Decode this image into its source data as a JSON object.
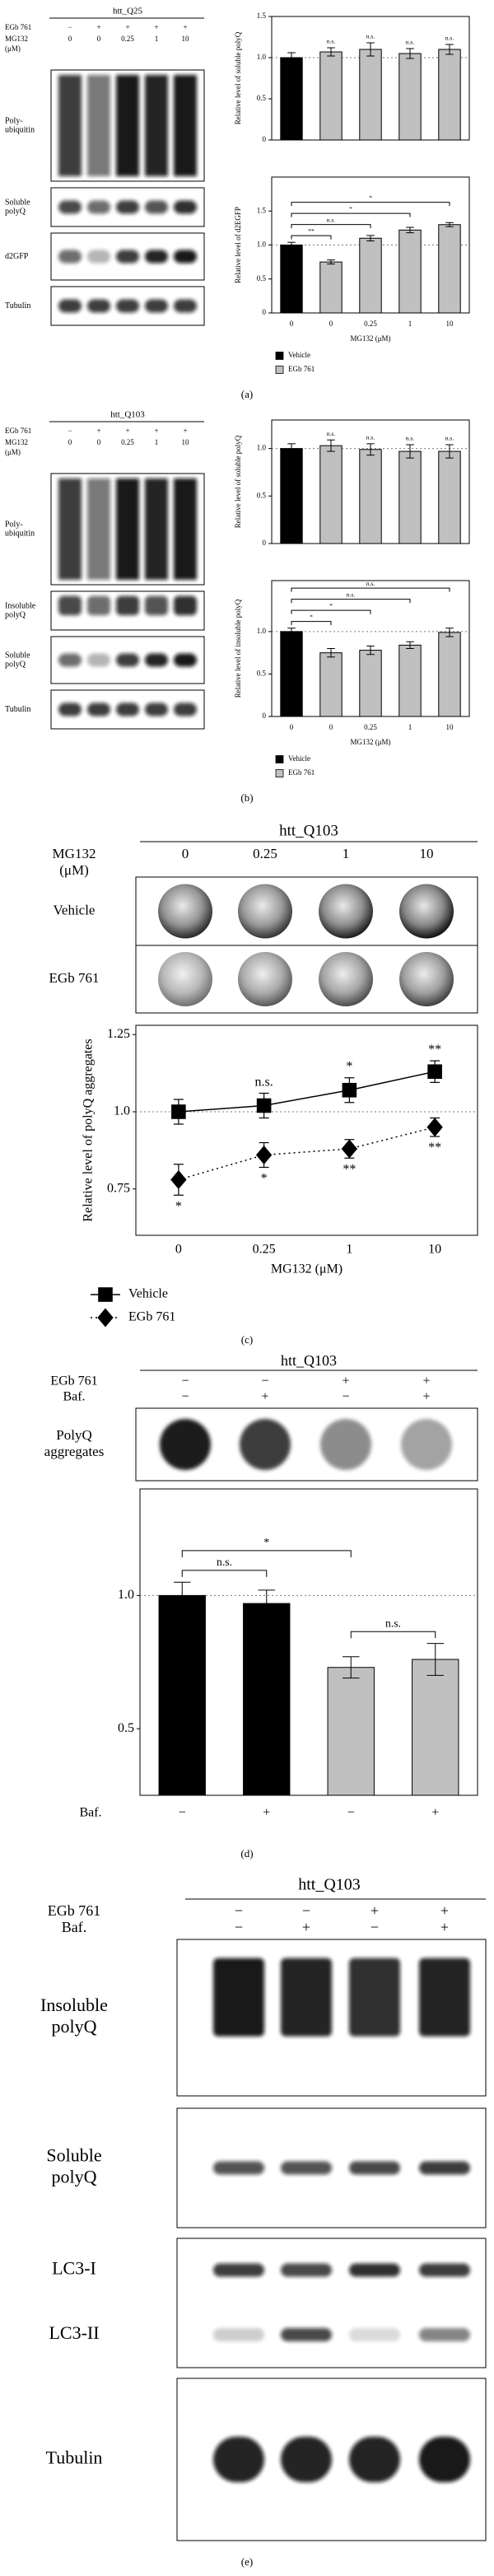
{
  "panel_labels": [
    "(a)",
    "(b)",
    "(c)",
    "(d)",
    "(e)"
  ],
  "blots": {
    "a": {
      "title": "htt_Q25",
      "conditions": [
        {
          "label": [
            "EGb 761"
          ],
          "lanes": [
            "−",
            "+",
            "+",
            "+",
            "+"
          ]
        },
        {
          "label": [
            "MG132",
            "(μM)"
          ],
          "lanes": [
            "0",
            "0",
            "0.25",
            "1",
            "10"
          ]
        }
      ],
      "rows": [
        {
          "label": [
            "Poly-",
            "ubiquitin"
          ]
        },
        {
          "label": [
            "Soluble",
            "polyQ"
          ]
        },
        {
          "label": [
            "d2GFP"
          ]
        },
        {
          "label": [
            "Tubulin"
          ]
        }
      ]
    },
    "b": {
      "title": "htt_Q103",
      "conditions": [
        {
          "label": [
            "EGb 761"
          ],
          "lanes": [
            "−",
            "+",
            "+",
            "+",
            "+"
          ]
        },
        {
          "label": [
            "MG132",
            "(μM)"
          ],
          "lanes": [
            "0",
            "0",
            "0.25",
            "1",
            "10"
          ]
        }
      ],
      "rows": [
        {
          "label": [
            "Poly-",
            "ubiquitin"
          ]
        },
        {
          "label": [
            "Insoluble",
            "polyQ"
          ]
        },
        {
          "label": [
            "Soluble",
            "polyQ"
          ]
        },
        {
          "label": [
            "Tubulin"
          ]
        }
      ]
    },
    "c": {
      "title": "htt_Q103",
      "conditions": [
        {
          "label": [
            "MG132",
            "(μM)"
          ],
          "lanes": [
            "0",
            "0.25",
            "1",
            "10"
          ]
        }
      ],
      "rows": [
        {
          "label": [
            "Vehicle"
          ]
        },
        {
          "label": [
            "EGb 761"
          ]
        }
      ]
    },
    "d": {
      "title": "htt_Q103",
      "conditions": [
        {
          "label": [
            "EGb 761"
          ],
          "lanes": [
            "−",
            "−",
            "+",
            "+"
          ]
        },
        {
          "label": [
            "Baf."
          ],
          "lanes": [
            "−",
            "+",
            "−",
            "+"
          ]
        }
      ],
      "rows": [
        {
          "label": [
            "PolyQ",
            "aggregates"
          ]
        }
      ]
    },
    "e": {
      "title": "htt_Q103",
      "conditions": [
        {
          "label": [
            "EGb 761"
          ],
          "lanes": [
            "−",
            "−",
            "+",
            "+"
          ]
        },
        {
          "label": [
            "Baf."
          ],
          "lanes": [
            "−",
            "+",
            "−",
            "+"
          ]
        }
      ],
      "rows": [
        {
          "label": [
            "Insoluble",
            "polyQ"
          ]
        },
        {
          "label": [
            "Soluble",
            "polyQ"
          ]
        },
        {
          "label": [
            "LC3-I"
          ]
        },
        {
          "label": [
            "LC3-II"
          ]
        },
        {
          "label": [
            "Tubulin"
          ]
        }
      ]
    }
  },
  "chart_data": [
    {
      "type": "bar",
      "y_label": "Relative level of soluble polyQ",
      "series": [
        {
          "name": "Vehicle",
          "color": "#000000",
          "values": [
            1.0,
            null,
            null,
            null,
            null
          ],
          "errors": [
            0.06,
            null,
            null,
            null,
            null
          ]
        },
        {
          "name": "EGb 761",
          "color": "#c0c0c0",
          "values": [
            null,
            1.07,
            1.1,
            1.05,
            1.1
          ],
          "errors": [
            null,
            0.05,
            0.08,
            0.06,
            0.06
          ]
        }
      ],
      "annotations": [
        null,
        "n.s.",
        "n.s.",
        "n.s.",
        "n.s."
      ],
      "ylim": [
        0,
        1.5
      ],
      "yticks": [
        0,
        0.5,
        {
          "value": 1,
          "label": "1.0"
        },
        1.5
      ],
      "reference_line": 1
    },
    {
      "type": "bar",
      "y_label": "Relative level of d2EGFP",
      "x_label": "MG132 (μM)",
      "categories": [
        "0",
        "0",
        "0.25",
        "1",
        "10"
      ],
      "series": [
        {
          "name": "Vehicle",
          "color": "#000000",
          "values": [
            1.0,
            null,
            null,
            null,
            null
          ],
          "errors": [
            0.04,
            null,
            null,
            null,
            null
          ]
        },
        {
          "name": "EGb 761",
          "color": "#c0c0c0",
          "values": [
            null,
            0.75,
            1.1,
            1.22,
            1.3
          ],
          "errors": [
            null,
            0.03,
            0.04,
            0.04,
            0.03
          ]
        }
      ],
      "comparisons": [
        {
          "from": 0,
          "to": 1,
          "label": "**"
        },
        {
          "from": 0,
          "to": 2,
          "label": "n.s."
        },
        {
          "from": 0,
          "to": 3,
          "label": "*"
        },
        {
          "from": 0,
          "to": 4,
          "label": "*"
        }
      ],
      "ylim": [
        0,
        2.0
      ],
      "yticks": [
        0,
        0.5,
        {
          "value": 1,
          "label": "1.0"
        },
        1.5
      ],
      "reference_line": 1,
      "legend": "below"
    },
    {
      "type": "bar",
      "y_label": "Relative level of soluble polyQ",
      "series": [
        {
          "name": "Vehicle",
          "color": "#000000",
          "values": [
            1.0,
            null,
            null,
            null,
            null
          ],
          "errors": [
            0.05,
            null,
            null,
            null,
            null
          ]
        },
        {
          "name": "EGb 761",
          "color": "#c0c0c0",
          "values": [
            null,
            1.03,
            0.99,
            0.97,
            0.97
          ],
          "errors": [
            null,
            0.06,
            0.06,
            0.07,
            0.07
          ]
        }
      ],
      "annotations": [
        null,
        "n.s.",
        "n.s.",
        "n.s.",
        "n.s."
      ],
      "ylim": [
        0,
        1.3
      ],
      "yticks": [
        0,
        0.5,
        {
          "value": 1,
          "label": "1.0"
        }
      ],
      "reference_line": 1
    },
    {
      "type": "bar",
      "y_label": "Relative level of insoluble polyQ",
      "x_label": "MG132 (μM)",
      "categories": [
        "0",
        "0",
        "0.25",
        "1",
        "10"
      ],
      "series": [
        {
          "name": "Vehicle",
          "color": "#000000",
          "values": [
            1.0,
            null,
            null,
            null,
            null
          ],
          "errors": [
            0.04,
            null,
            null,
            null,
            null
          ]
        },
        {
          "name": "EGb 761",
          "color": "#c0c0c0",
          "values": [
            null,
            0.75,
            0.78,
            0.84,
            0.99
          ],
          "errors": [
            null,
            0.05,
            0.05,
            0.04,
            0.05
          ]
        }
      ],
      "comparisons": [
        {
          "from": 0,
          "to": 1,
          "label": "*"
        },
        {
          "from": 0,
          "to": 2,
          "label": "*"
        },
        {
          "from": 0,
          "to": 3,
          "label": "n.s."
        },
        {
          "from": 0,
          "to": 4,
          "label": "n.s."
        }
      ],
      "ylim": [
        0,
        1.6
      ],
      "yticks": [
        0,
        0.5,
        {
          "value": 1,
          "label": "1.0"
        }
      ],
      "reference_line": 1,
      "legend": "below"
    },
    {
      "type": "line",
      "y_label": "Relative level of polyQ aggregates",
      "x_label": "MG132 (μM)",
      "categories": [
        "0",
        "0.25",
        "1",
        "10"
      ],
      "series": [
        {
          "name": "Vehicle",
          "color": "#000000",
          "marker": "square",
          "line_style": "solid",
          "values": [
            1.0,
            1.02,
            1.07,
            1.13
          ],
          "errors": [
            0.04,
            0.04,
            0.04,
            0.035
          ],
          "annotations": [
            null,
            "n.s.",
            "*",
            "**"
          ],
          "annotation_position": "above"
        },
        {
          "name": "EGb 761",
          "color": "#000000",
          "marker": "diamond",
          "line_style": "dotted",
          "values": [
            0.78,
            0.86,
            0.88,
            0.95
          ],
          "errors": [
            0.05,
            0.04,
            0.03,
            0.03
          ],
          "annotations": [
            "*",
            "*",
            "**",
            "**"
          ],
          "annotation_position": "below"
        }
      ],
      "ylim": [
        0.6,
        1.28
      ],
      "yticks": [
        0.75,
        {
          "value": 1,
          "label": "1.0"
        },
        1.25
      ],
      "reference_line": 1,
      "legend": "below"
    },
    {
      "type": "bar",
      "x_label": "Baf.",
      "categories": [
        "−",
        "+",
        "−",
        "+"
      ],
      "values": [
        1.0,
        0.97,
        0.73,
        0.76
      ],
      "errors": [
        0.05,
        0.05,
        0.04,
        0.06
      ],
      "colors": [
        "#000000",
        "#000000",
        "#c0c0c0",
        "#c0c0c0"
      ],
      "comparisons": [
        {
          "from": 0,
          "to": 1,
          "label": "n.s."
        },
        {
          "from": 0,
          "to": 2,
          "label": "*"
        },
        {
          "from": 2,
          "to": 3,
          "label": "n.s."
        }
      ],
      "ylim": [
        0.25,
        1.4
      ],
      "yticks": [
        0.5,
        {
          "value": 1,
          "label": "1.0"
        }
      ],
      "reference_line": 1
    }
  ]
}
